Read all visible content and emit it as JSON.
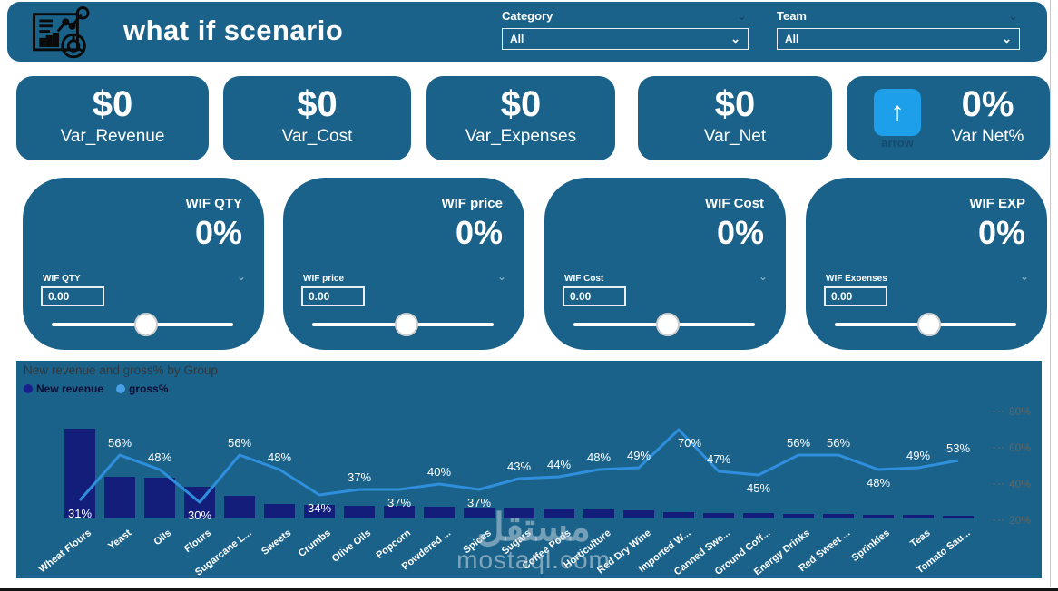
{
  "header": {
    "title": "what if scenario",
    "category": {
      "label": "Category",
      "value": "All"
    },
    "team": {
      "label": "Team",
      "value": "All"
    }
  },
  "kpis": [
    {
      "value": "$0",
      "label": "Var_Revenue"
    },
    {
      "value": "$0",
      "label": "Var_Cost"
    },
    {
      "value": "$0",
      "label": "Var_Expenses"
    },
    {
      "value": "$0",
      "label": "Var_Net"
    },
    {
      "value": "0%",
      "label": "Var Net%",
      "icon": "arrow-up",
      "icon_caption": "arrow"
    }
  ],
  "wif_cards": [
    {
      "title": "WIF QTY",
      "value": "0%",
      "param_label": "WIF QTY",
      "input_value": "0.00"
    },
    {
      "title": "WIF price",
      "value": "0%",
      "param_label": "WIF price",
      "input_value": "0.00"
    },
    {
      "title": "WIF Cost",
      "value": "0%",
      "param_label": "WIF Cost",
      "input_value": "0.00"
    },
    {
      "title": "WIF EXP",
      "value": "0%",
      "param_label": "WIF Exoenses",
      "input_value": "0.00"
    }
  ],
  "chart_data": {
    "type": "combo-bar-line",
    "title": "New revenue and gross% by Group",
    "legend": [
      {
        "name": "New revenue",
        "color": "#1a1f8e",
        "type": "bar"
      },
      {
        "name": "gross%",
        "color": "#49a0e6",
        "type": "line"
      }
    ],
    "categories": [
      "Wheat Flours",
      "Yeast",
      "Oils",
      "Flours",
      "Sugarcane L...",
      "Sweets",
      "Crumbs",
      "Olive Oils",
      "Popcorn",
      "Powdered ...",
      "Spices",
      "Sugars",
      "Coffee Pods",
      "Horticulture",
      "Red Dry Wine",
      "Imported W...",
      "Canned Swe...",
      "Ground Coff...",
      "Energy Drinks",
      "Red Sweet ...",
      "Sprinkles",
      "Teas",
      "Tomato Sau..."
    ],
    "series": [
      {
        "name": "New revenue",
        "type": "bar",
        "axis": "left-hidden",
        "values_relative": [
          100,
          46,
          45,
          35,
          25,
          16,
          15,
          14,
          14,
          13,
          12,
          12,
          11,
          10,
          9,
          7,
          6,
          6,
          5,
          5,
          4,
          4,
          3
        ]
      },
      {
        "name": "gross%",
        "type": "line",
        "axis": "right",
        "values": [
          31,
          56,
          48,
          30,
          56,
          48,
          34,
          37,
          37,
          40,
          37,
          43,
          44,
          48,
          49,
          70,
          47,
          45,
          56,
          56,
          48,
          49,
          53
        ],
        "label_positions": [
          "below",
          "above",
          "above",
          "below",
          "above",
          "above",
          "below",
          "above",
          "below",
          "above",
          "below",
          "above",
          "above",
          "above",
          "above",
          "below",
          "above",
          "below",
          "above",
          "above",
          "below",
          "above",
          "above"
        ]
      }
    ],
    "right_axis": {
      "ticks": [
        "80%",
        "60%",
        "40%",
        "20%"
      ],
      "min": 20,
      "max": 80,
      "grid": false,
      "position": "right"
    }
  },
  "watermark": {
    "arabic": "مستقل",
    "latin": "mostaql.com"
  },
  "colors": {
    "teal": "#1a628a",
    "bar_navy": "#131e7b",
    "line_blue": "#2f8fdd",
    "arrow_tile_blue": "#1da0e9"
  }
}
